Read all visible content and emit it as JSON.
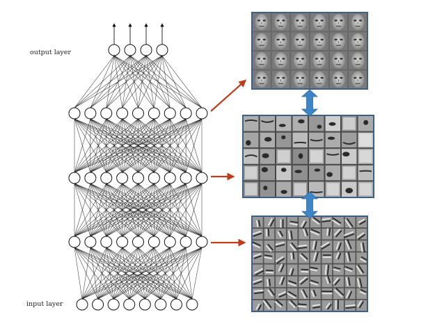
{
  "labels": {
    "output_layer": "output layer",
    "input_layer": "input layer"
  },
  "network": {
    "output_units": 4,
    "hidden_layers": [
      9,
      9,
      9
    ],
    "input_units": 8
  },
  "feature_panels": [
    {
      "name": "faces",
      "rows": 4,
      "cols": 6
    },
    {
      "name": "object-parts",
      "rows": 5,
      "cols": 8
    },
    {
      "name": "edges",
      "rows": 8,
      "cols": 10
    }
  ],
  "colors": {
    "edge": "#111111",
    "red_arrow": "#c23a1c",
    "blue_arrow": "#3d85c6",
    "panel_frame": "#3b5f86"
  }
}
